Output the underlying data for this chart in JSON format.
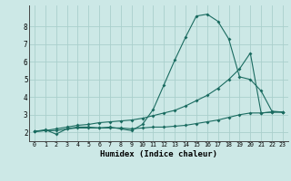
{
  "bg_color": "#cce8e6",
  "grid_color": "#aacfcc",
  "line_color": "#1a6b60",
  "xlabel": "Humidex (Indice chaleur)",
  "xlim": [
    -0.5,
    23.5
  ],
  "ylim": [
    1.5,
    9.2
  ],
  "yticks": [
    2,
    3,
    4,
    5,
    6,
    7,
    8
  ],
  "xticks": [
    0,
    1,
    2,
    3,
    4,
    5,
    6,
    7,
    8,
    9,
    10,
    11,
    12,
    13,
    14,
    15,
    16,
    17,
    18,
    19,
    20,
    21,
    22,
    23
  ],
  "line1_x": [
    0,
    1,
    2,
    3,
    4,
    5,
    6,
    7,
    8,
    9,
    10,
    11,
    12,
    13,
    14,
    15,
    16,
    17,
    18,
    19,
    20,
    21,
    22,
    23
  ],
  "line1_y": [
    2.05,
    2.15,
    1.9,
    2.2,
    2.3,
    2.3,
    2.25,
    2.3,
    2.2,
    2.1,
    2.45,
    3.3,
    4.7,
    6.1,
    7.4,
    8.6,
    8.7,
    8.3,
    7.3,
    5.15,
    5.0,
    4.35,
    3.2,
    3.15
  ],
  "line2_x": [
    0,
    1,
    2,
    3,
    4,
    5,
    6,
    7,
    8,
    9,
    10,
    11,
    12,
    13,
    14,
    15,
    16,
    17,
    18,
    19,
    20,
    21,
    22,
    23
  ],
  "line2_y": [
    2.05,
    2.1,
    2.2,
    2.3,
    2.4,
    2.45,
    2.55,
    2.6,
    2.65,
    2.7,
    2.8,
    2.95,
    3.1,
    3.25,
    3.5,
    3.8,
    4.1,
    4.5,
    5.0,
    5.6,
    6.5,
    3.1,
    3.15,
    3.15
  ],
  "line3_x": [
    0,
    1,
    2,
    3,
    4,
    5,
    6,
    7,
    8,
    9,
    10,
    11,
    12,
    13,
    14,
    15,
    16,
    17,
    18,
    19,
    20,
    21,
    22,
    23
  ],
  "line3_y": [
    2.05,
    2.1,
    2.1,
    2.2,
    2.25,
    2.25,
    2.25,
    2.25,
    2.25,
    2.2,
    2.25,
    2.3,
    2.3,
    2.35,
    2.4,
    2.5,
    2.6,
    2.7,
    2.85,
    3.0,
    3.1,
    3.1,
    3.15,
    3.15
  ]
}
